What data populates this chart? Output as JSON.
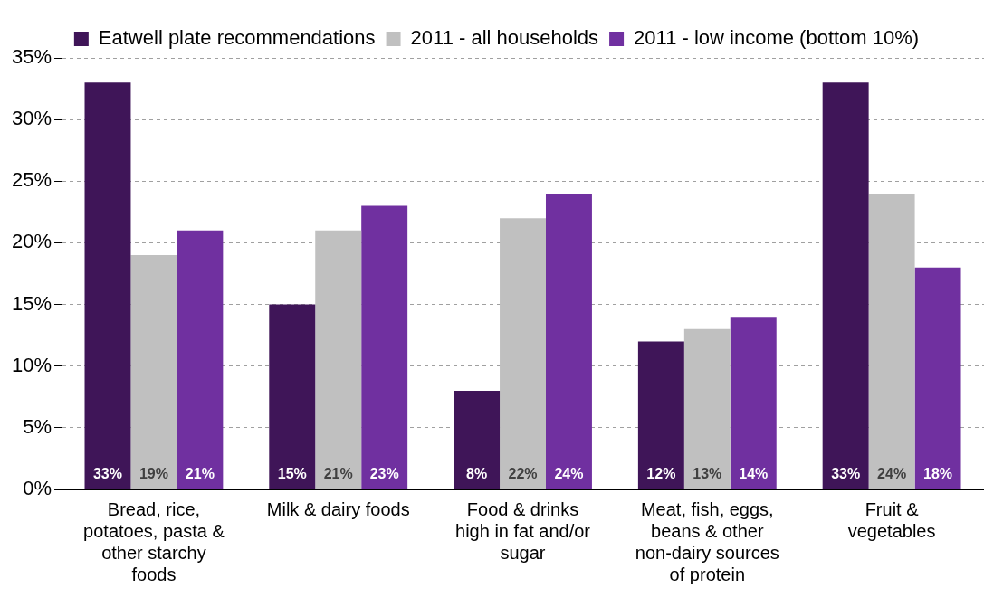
{
  "chart_data": {
    "type": "bar",
    "categories": [
      "Bread, rice, potatoes, pasta & other starchy foods",
      "Milk & dairy foods",
      "Food & drinks high in fat and/or sugar",
      "Meat, fish, eggs, beans & other non-dairy sources of protein",
      "Fruit & vegetables"
    ],
    "series": [
      {
        "name": "Eatwell plate recommendations",
        "color": "#3f1558",
        "values": [
          33,
          15,
          8,
          12,
          33
        ],
        "value_labels": [
          "33%",
          "15%",
          "8%",
          "12%",
          "33%"
        ]
      },
      {
        "name": "2011 - all households",
        "color": "#c0c0c0",
        "values": [
          19,
          21,
          22,
          13,
          24
        ],
        "value_labels": [
          "19%",
          "21%",
          "22%",
          "13%",
          "24%"
        ]
      },
      {
        "name": "2011 - low income (bottom 10%)",
        "color": "#7030a0",
        "values": [
          21,
          23,
          24,
          14,
          18
        ],
        "value_labels": [
          "21%",
          "23%",
          "24%",
          "14%",
          "18%"
        ]
      }
    ],
    "ylim": [
      0,
      35
    ],
    "yticks": [
      {
        "value": 0,
        "label": "0%"
      },
      {
        "value": 5,
        "label": "5%"
      },
      {
        "value": 10,
        "label": "10%"
      },
      {
        "value": 15,
        "label": "15%"
      },
      {
        "value": 20,
        "label": "20%"
      },
      {
        "value": 25,
        "label": "25%"
      },
      {
        "value": 30,
        "label": "30%"
      },
      {
        "value": 35,
        "label": "35%"
      }
    ],
    "grid": "y",
    "legend": "top"
  }
}
